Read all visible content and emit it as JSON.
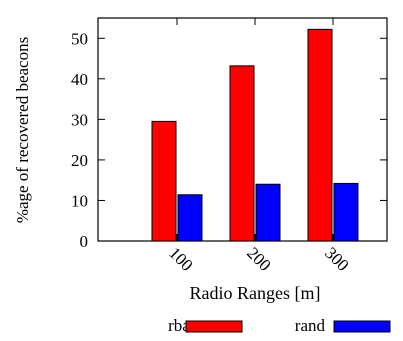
{
  "chart_data": {
    "type": "bar",
    "categories": [
      "100",
      "200",
      "300"
    ],
    "series": [
      {
        "name": "rbase",
        "values": [
          29.5,
          43.2,
          52.2
        ],
        "color": "#ff0000"
      },
      {
        "name": "rand",
        "values": [
          11.4,
          14.0,
          14.2
        ],
        "color": "#0000ff"
      }
    ],
    "ylabel": "%age of recovered beacons",
    "xlabel": "Radio Ranges [m]",
    "ylim": [
      0,
      55
    ],
    "yticks": [
      0,
      10,
      20,
      30,
      40,
      50
    ],
    "grid": false,
    "legend_position": "bottom"
  }
}
